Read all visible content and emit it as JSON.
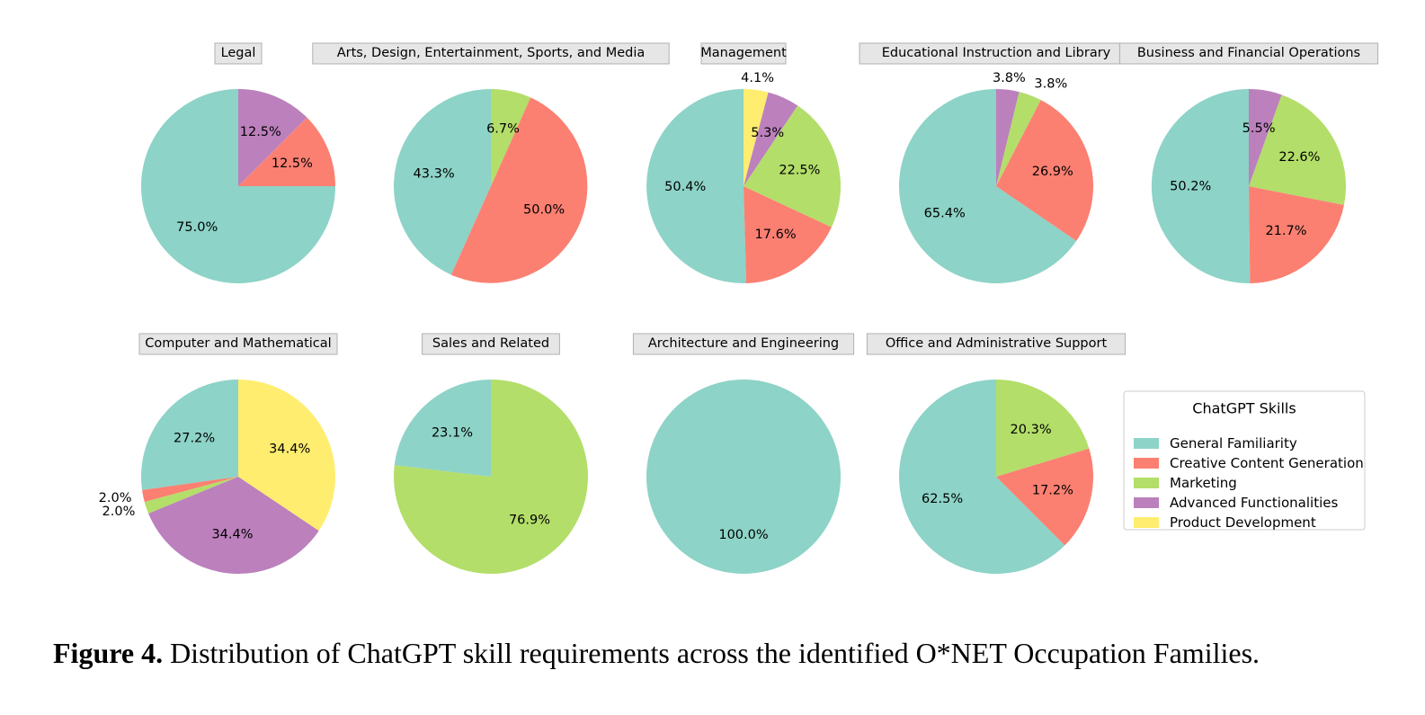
{
  "caption": {
    "label": "Figure 4.",
    "text": " Distribution of ChatGPT skill requirements across the identified O*NET Occupation Families."
  },
  "chart_data": {
    "type": "pie",
    "legend": {
      "title": "ChatGPT Skills",
      "placement": "bottom-right",
      "entries": [
        {
          "name": "General Familiarity",
          "color": "#8dd3c7"
        },
        {
          "name": "Creative Content Generation",
          "color": "#fb8072"
        },
        {
          "name": "Marketing",
          "color": "#b3de69"
        },
        {
          "name": "Advanced Functionalities",
          "color": "#bc80bd"
        },
        {
          "name": "Product Development",
          "color": "#ffed6f"
        }
      ]
    },
    "pies": [
      {
        "title": "Legal",
        "values": [
          75.0,
          12.5,
          0,
          12.5,
          0
        ]
      },
      {
        "title": "Arts, Design, Entertainment, Sports, and Media",
        "values": [
          43.3,
          50.0,
          6.7,
          0,
          0
        ]
      },
      {
        "title": "Management",
        "values": [
          50.4,
          17.6,
          22.5,
          5.3,
          4.1
        ]
      },
      {
        "title": "Educational Instruction and Library",
        "values": [
          65.4,
          26.9,
          3.8,
          3.8,
          0
        ]
      },
      {
        "title": "Business and Financial Operations",
        "values": [
          50.2,
          21.7,
          22.6,
          5.5,
          0
        ]
      },
      {
        "title": "Computer and Mathematical",
        "values": [
          27.2,
          2.0,
          2.0,
          34.4,
          34.4
        ]
      },
      {
        "title": "Sales and Related",
        "values": [
          23.1,
          0,
          76.9,
          0,
          0
        ]
      },
      {
        "title": "Architecture and Engineering",
        "values": [
          100.0,
          0,
          0,
          0,
          0
        ]
      },
      {
        "title": "Office and Administrative Support",
        "values": [
          62.5,
          17.2,
          20.3,
          0,
          0
        ]
      }
    ]
  }
}
